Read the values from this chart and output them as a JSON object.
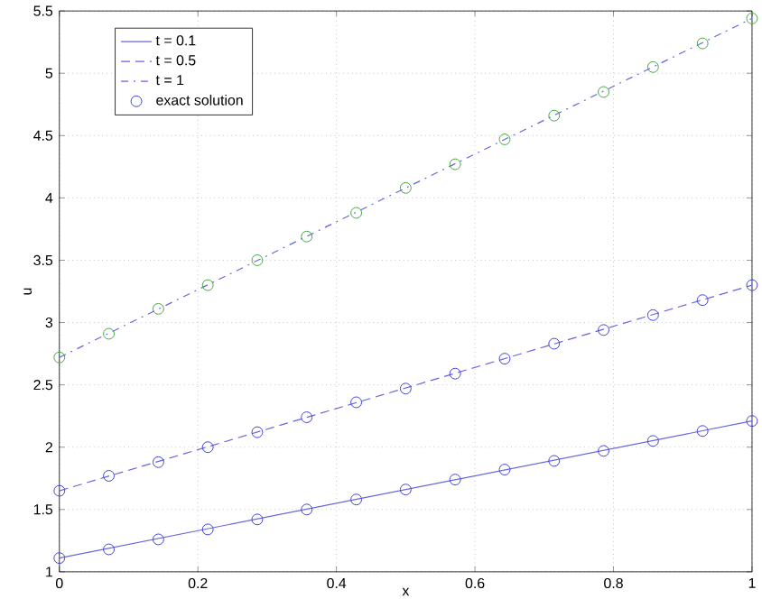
{
  "chart_data": {
    "type": "line",
    "xlabel": "x",
    "ylabel": "u",
    "xlim": [
      0,
      1
    ],
    "ylim": [
      1,
      5.5
    ],
    "xticks": [
      0,
      0.2,
      0.4,
      0.6,
      0.8,
      1
    ],
    "yticks": [
      1,
      1.5,
      2,
      2.5,
      3,
      3.5,
      4,
      4.5,
      5,
      5.5
    ],
    "grid": true,
    "legend": "top left",
    "series": [
      {
        "name": "t = 0.1",
        "line_style": "solid",
        "marker": "none",
        "color": "#6666dd",
        "x": [
          0,
          1
        ],
        "values": [
          1.11,
          2.21
        ]
      },
      {
        "name": "t = 0.5",
        "line_style": "dashed",
        "marker": "none",
        "color": "#6666dd",
        "x": [
          0,
          1
        ],
        "values": [
          1.65,
          3.3
        ]
      },
      {
        "name": "t = 1",
        "line_style": "dashdot",
        "marker": "none",
        "color": "#6666dd",
        "x": [
          0,
          1
        ],
        "values": [
          2.72,
          5.44
        ]
      },
      {
        "name": "exact solution",
        "type": "scatter",
        "marker": "circle",
        "color": "#4444dd",
        "x": [
          0,
          0.0714,
          0.1429,
          0.2143,
          0.2857,
          0.3571,
          0.4286,
          0.5,
          0.5714,
          0.6429,
          0.7143,
          0.7857,
          0.8571,
          0.9286,
          1,
          0,
          0.0714,
          0.1429,
          0.2143,
          0.2857,
          0.3571,
          0.4286,
          0.5,
          0.5714,
          0.6429,
          0.7143,
          0.7857,
          0.8571,
          0.9286,
          1
        ],
        "values": [
          1.11,
          1.18,
          1.26,
          1.34,
          1.42,
          1.5,
          1.58,
          1.66,
          1.74,
          1.82,
          1.89,
          1.97,
          2.05,
          2.13,
          2.21,
          1.65,
          1.77,
          1.88,
          2.0,
          2.12,
          2.24,
          2.36,
          2.47,
          2.59,
          2.71,
          2.83,
          2.94,
          3.06,
          3.18,
          3.3
        ]
      },
      {
        "type": "scatter",
        "marker": "circle",
        "color": "#44aa44",
        "x": [
          0,
          0.0714,
          0.1429,
          0.2143,
          0.2857,
          0.3571,
          0.4286,
          0.5,
          0.5714,
          0.6429,
          0.7143,
          0.7857,
          0.8571,
          0.9286,
          1
        ],
        "values": [
          2.72,
          2.91,
          3.11,
          3.3,
          3.5,
          3.69,
          3.88,
          4.08,
          4.27,
          4.47,
          4.66,
          4.85,
          5.05,
          5.24,
          5.44
        ]
      }
    ]
  }
}
